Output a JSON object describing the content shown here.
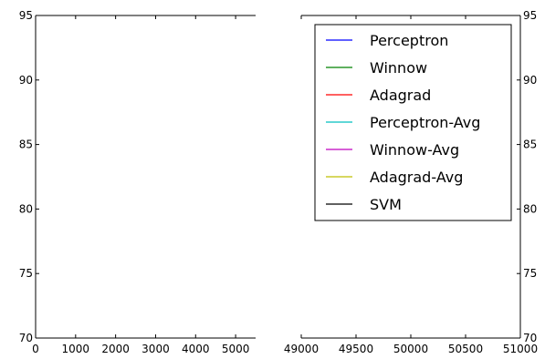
{
  "chart_data": [
    {
      "type": "line",
      "title": "",
      "xlabel": "",
      "ylabel": "",
      "xlim": [
        0,
        5500
      ],
      "ylim": [
        70,
        95
      ],
      "x_ticks": [
        "0",
        "1000",
        "2000",
        "3000",
        "4000",
        "5000"
      ],
      "y_ticks": [
        "70",
        "75",
        "80",
        "85",
        "90",
        "95"
      ],
      "y_axis_side": "left",
      "grid": false,
      "series": []
    },
    {
      "type": "line",
      "title": "",
      "xlabel": "",
      "ylabel": "",
      "xlim": [
        49000,
        51000
      ],
      "ylim": [
        70,
        95
      ],
      "x_ticks": [
        "49000",
        "49500",
        "50000",
        "50500",
        "51000"
      ],
      "y_ticks": [
        "70",
        "75",
        "80",
        "85",
        "90",
        "95"
      ],
      "y_axis_side": "right",
      "grid": false,
      "legend_position": "top-right",
      "series": []
    }
  ],
  "legend": [
    {
      "name": "Perceptron",
      "color": "#0000ff"
    },
    {
      "name": "Winnow",
      "color": "#008000"
    },
    {
      "name": "Adagrad",
      "color": "#ff0000"
    },
    {
      "name": "Perceptron-Avg",
      "color": "#00bfbf"
    },
    {
      "name": "Winnow-Avg",
      "color": "#bf00bf"
    },
    {
      "name": "Adagrad-Avg",
      "color": "#bfbf00"
    },
    {
      "name": "SVM",
      "color": "#000000"
    }
  ]
}
